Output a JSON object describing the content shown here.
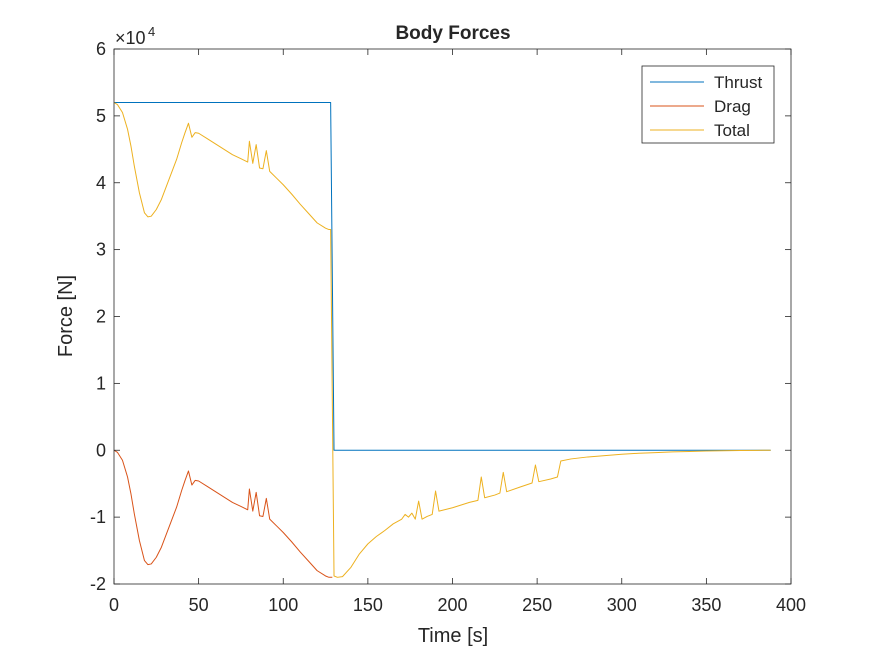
{
  "chart_data": {
    "type": "line",
    "title": "Body Forces",
    "xlabel": "Time [s]",
    "ylabel": "Force [N]",
    "exponent_label": "×10",
    "exponent_power": "4",
    "xlim": [
      0,
      400
    ],
    "ylim": [
      -20000,
      60000
    ],
    "x_ticks": [
      0,
      50,
      100,
      150,
      200,
      250,
      300,
      350,
      400
    ],
    "x_tick_labels": [
      "0",
      "50",
      "100",
      "150",
      "200",
      "250",
      "300",
      "350",
      "400"
    ],
    "y_ticks": [
      -20000,
      -10000,
      0,
      10000,
      20000,
      30000,
      40000,
      50000,
      60000
    ],
    "y_tick_labels": [
      "-2",
      "-1",
      "0",
      "1",
      "2",
      "3",
      "4",
      "5",
      "6"
    ],
    "grid": false,
    "legend_position": "top-right",
    "series": [
      {
        "name": "Thrust",
        "color": "#0072BD",
        "points": [
          [
            0,
            52000
          ],
          [
            128,
            52000
          ],
          [
            130,
            0
          ],
          [
            388,
            0
          ]
        ]
      },
      {
        "name": "Drag",
        "color": "#D95319",
        "points": [
          [
            0,
            0
          ],
          [
            2,
            -300
          ],
          [
            5,
            -1500
          ],
          [
            8,
            -4000
          ],
          [
            10,
            -6500
          ],
          [
            12,
            -9500
          ],
          [
            15,
            -13500
          ],
          [
            18,
            -16500
          ],
          [
            20,
            -17100
          ],
          [
            22,
            -17000
          ],
          [
            25,
            -16000
          ],
          [
            28,
            -14500
          ],
          [
            31,
            -12500
          ],
          [
            34,
            -10500
          ],
          [
            37,
            -8500
          ],
          [
            40,
            -6000
          ],
          [
            42,
            -4500
          ],
          [
            44,
            -3100
          ],
          [
            46,
            -5200
          ],
          [
            48,
            -4500
          ],
          [
            50,
            -4600
          ],
          [
            55,
            -5400
          ],
          [
            60,
            -6200
          ],
          [
            65,
            -7000
          ],
          [
            70,
            -7800
          ],
          [
            75,
            -8400
          ],
          [
            79,
            -8900
          ],
          [
            80,
            -5800
          ],
          [
            82,
            -9100
          ],
          [
            84,
            -6300
          ],
          [
            86,
            -9800
          ],
          [
            88,
            -9900
          ],
          [
            90,
            -7200
          ],
          [
            92,
            -10300
          ],
          [
            96,
            -11300
          ],
          [
            100,
            -12300
          ],
          [
            105,
            -13700
          ],
          [
            110,
            -15200
          ],
          [
            115,
            -16600
          ],
          [
            120,
            -18000
          ],
          [
            125,
            -18800
          ],
          [
            127,
            -19000
          ],
          [
            129,
            -19000
          ]
        ]
      },
      {
        "name": "Total",
        "color": "#EDB120",
        "points": [
          [
            0,
            52000
          ],
          [
            2,
            51700
          ],
          [
            5,
            50500
          ],
          [
            8,
            48000
          ],
          [
            10,
            45500
          ],
          [
            12,
            42500
          ],
          [
            15,
            38500
          ],
          [
            18,
            35500
          ],
          [
            20,
            34900
          ],
          [
            22,
            35000
          ],
          [
            25,
            36000
          ],
          [
            28,
            37500
          ],
          [
            31,
            39500
          ],
          [
            34,
            41500
          ],
          [
            37,
            43500
          ],
          [
            40,
            46000
          ],
          [
            42,
            47500
          ],
          [
            44,
            48900
          ],
          [
            46,
            46800
          ],
          [
            48,
            47500
          ],
          [
            50,
            47400
          ],
          [
            55,
            46600
          ],
          [
            60,
            45800
          ],
          [
            65,
            45000
          ],
          [
            70,
            44200
          ],
          [
            75,
            43600
          ],
          [
            79,
            43100
          ],
          [
            80,
            46200
          ],
          [
            82,
            42900
          ],
          [
            84,
            45700
          ],
          [
            86,
            42200
          ],
          [
            88,
            42100
          ],
          [
            90,
            44800
          ],
          [
            92,
            41700
          ],
          [
            96,
            40700
          ],
          [
            100,
            39700
          ],
          [
            105,
            38300
          ],
          [
            110,
            36800
          ],
          [
            115,
            35400
          ],
          [
            120,
            34000
          ],
          [
            125,
            33200
          ],
          [
            127,
            33000
          ],
          [
            128,
            33000
          ],
          [
            130,
            -18800
          ],
          [
            132,
            -19000
          ],
          [
            135,
            -18900
          ],
          [
            140,
            -17500
          ],
          [
            145,
            -15500
          ],
          [
            150,
            -14000
          ],
          [
            155,
            -12900
          ],
          [
            160,
            -12000
          ],
          [
            165,
            -11000
          ],
          [
            170,
            -10300
          ],
          [
            172,
            -9600
          ],
          [
            174,
            -10000
          ],
          [
            176,
            -9400
          ],
          [
            178,
            -10300
          ],
          [
            180,
            -7600
          ],
          [
            182,
            -10300
          ],
          [
            185,
            -9900
          ],
          [
            188,
            -9600
          ],
          [
            190,
            -6100
          ],
          [
            192,
            -9100
          ],
          [
            200,
            -8600
          ],
          [
            210,
            -7800
          ],
          [
            215,
            -7500
          ],
          [
            217,
            -4000
          ],
          [
            219,
            -7100
          ],
          [
            225,
            -6700
          ],
          [
            228,
            -6400
          ],
          [
            230,
            -3300
          ],
          [
            232,
            -6200
          ],
          [
            240,
            -5500
          ],
          [
            247,
            -4900
          ],
          [
            249,
            -2200
          ],
          [
            251,
            -4700
          ],
          [
            258,
            -4300
          ],
          [
            262,
            -4000
          ],
          [
            264,
            -1600
          ],
          [
            270,
            -1300
          ],
          [
            280,
            -1000
          ],
          [
            290,
            -800
          ],
          [
            300,
            -600
          ],
          [
            310,
            -450
          ],
          [
            320,
            -350
          ],
          [
            330,
            -250
          ],
          [
            340,
            -180
          ],
          [
            350,
            -120
          ],
          [
            360,
            -70
          ],
          [
            370,
            -30
          ],
          [
            380,
            -10
          ],
          [
            388,
            0
          ]
        ]
      }
    ]
  }
}
